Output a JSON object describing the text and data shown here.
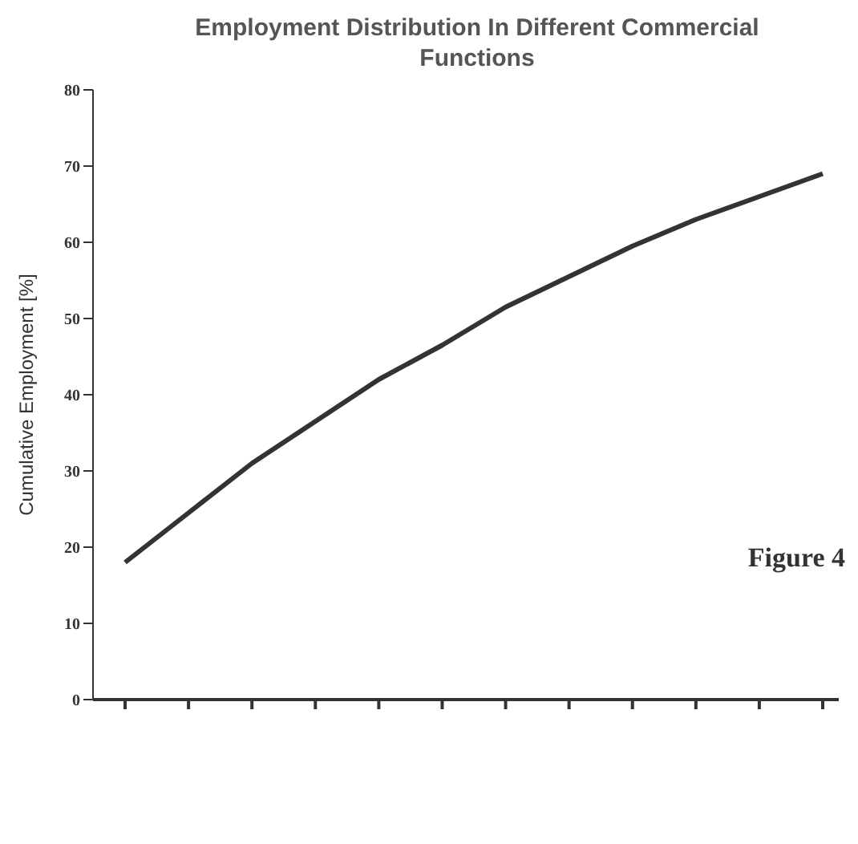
{
  "chart_data": {
    "type": "line",
    "title": "Employment Distribution In Different Commercial Functions",
    "ylabel": "Cumulative Employment [%]",
    "annotations": [
      "Figure 4"
    ],
    "categories": [
      null,
      null,
      null,
      null,
      null,
      null,
      null,
      null,
      null,
      null,
      null,
      null
    ],
    "series": [
      {
        "color": "#333333",
        "values": [
          18,
          24.5,
          31,
          36.5,
          42,
          46.5,
          51.5,
          55.5,
          59.5,
          63,
          66,
          69
        ]
      }
    ],
    "ylim": [
      0,
      80
    ],
    "yticks": [
      0,
      10,
      20,
      30,
      40,
      50,
      60,
      70,
      80
    ],
    "grid": false,
    "marker": "none",
    "line_style": "solid",
    "tick_labels": "y"
  }
}
